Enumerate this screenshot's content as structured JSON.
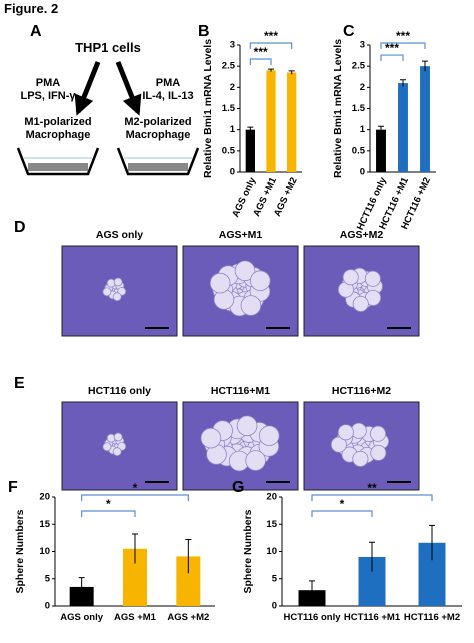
{
  "figure_title": "Figure. 2",
  "panel_a": {
    "label": "A",
    "source": "THP1 cells",
    "left_treatment": [
      "PMA",
      "LPS, IFN-γ"
    ],
    "right_treatment": [
      "PMA",
      "IL-4, IL-13"
    ],
    "left_result": [
      "M1-polarized",
      "Macrophage"
    ],
    "right_result": [
      "M2-polarized",
      "Macrophage"
    ]
  },
  "panel_d": {
    "label": "D",
    "images": [
      "AGS only",
      "AGS+M1",
      "AGS+M2"
    ]
  },
  "panel_e": {
    "label": "E",
    "images": [
      "HCT116 only",
      "HCT116+M1",
      "HCT116+M2"
    ]
  },
  "chart_data": [
    {
      "type": "bar",
      "panel": "B",
      "ylabel": "Relative Bmi1 mRNA Levels",
      "categories": [
        "AGS only",
        "AGS +M1",
        "AGS +M2"
      ],
      "values": [
        1.0,
        2.4,
        2.35
      ],
      "errors": [
        0.06,
        0.03,
        0.04
      ],
      "colors": [
        "#000000",
        "#f7b500",
        "#f7b500"
      ],
      "ylim": [
        0,
        3
      ],
      "yticks": [
        0,
        0.5,
        1,
        1.5,
        2,
        2.5,
        3
      ],
      "significance": [
        {
          "from": 0,
          "to": 1,
          "label": "***"
        },
        {
          "from": 0,
          "to": 2,
          "label": "***"
        }
      ]
    },
    {
      "type": "bar",
      "panel": "C",
      "ylabel": "Relative Bmi1 mRNA Levels",
      "categories": [
        "HCT116 only",
        "HCT116 +M1",
        "HCT116 +M2"
      ],
      "values": [
        1.0,
        2.1,
        2.5
      ],
      "errors": [
        0.08,
        0.08,
        0.12
      ],
      "colors": [
        "#000000",
        "#1f6fc0",
        "#1f6fc0"
      ],
      "ylim": [
        0,
        3
      ],
      "yticks": [
        0,
        0.5,
        1,
        1.5,
        2,
        2.5,
        3
      ],
      "significance": [
        {
          "from": 0,
          "to": 1,
          "label": "***"
        },
        {
          "from": 0,
          "to": 2,
          "label": "***"
        }
      ]
    },
    {
      "type": "bar",
      "panel": "F",
      "ylabel": "Sphere Numbers",
      "categories": [
        "AGS only",
        "AGS +M1",
        "AGS +M2"
      ],
      "values": [
        3.5,
        10.5,
        9.1
      ],
      "errors": [
        1.7,
        2.7,
        3.1
      ],
      "colors": [
        "#000000",
        "#f7b500",
        "#f7b500"
      ],
      "ylim": [
        0,
        20
      ],
      "yticks": [
        0,
        5,
        10,
        15,
        20
      ],
      "significance": [
        {
          "from": 0,
          "to": 1,
          "label": "*"
        },
        {
          "from": 0,
          "to": 2,
          "label": "*"
        }
      ]
    },
    {
      "type": "bar",
      "panel": "G",
      "ylabel": "Sphere Numbers",
      "categories": [
        "HCT116 only",
        "HCT116 +M1",
        "HCT116 +M2"
      ],
      "values": [
        2.9,
        9.0,
        11.6
      ],
      "errors": [
        1.7,
        2.7,
        3.2
      ],
      "colors": [
        "#000000",
        "#1f6fc0",
        "#1f6fc0"
      ],
      "ylim": [
        0,
        20
      ],
      "yticks": [
        0,
        5,
        10,
        15,
        20
      ],
      "significance": [
        {
          "from": 0,
          "to": 1,
          "label": "*"
        },
        {
          "from": 0,
          "to": 2,
          "label": "**"
        }
      ]
    }
  ]
}
